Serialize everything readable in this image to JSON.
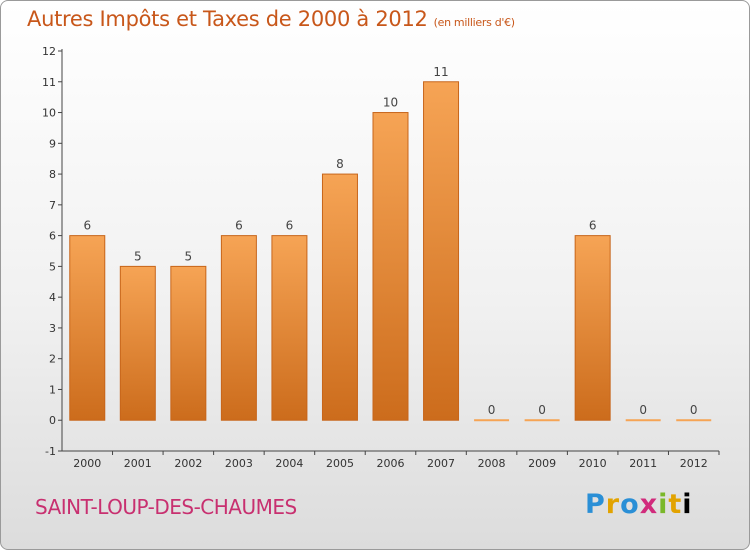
{
  "header": {
    "title": "Autres Impôts et Taxes de 2000 à 2012",
    "subtitle": "(en milliers d'€)"
  },
  "footer": {
    "commune": "SAINT-LOUP-DES-CHAUMES",
    "logo_letters": [
      "P",
      "r",
      "o",
      "x",
      "i",
      "t",
      "i"
    ]
  },
  "colors": {
    "title": "#c8571a",
    "commune": "#c83070",
    "bar_light": "#f6a455",
    "bar_dark": "#cc6c1c",
    "axis": "#444444"
  },
  "chart_data": {
    "type": "bar",
    "categories": [
      "2000",
      "2001",
      "2002",
      "2003",
      "2004",
      "2005",
      "2006",
      "2007",
      "2008",
      "2009",
      "2010",
      "2011",
      "2012"
    ],
    "values": [
      6,
      5,
      5,
      6,
      6,
      8,
      10,
      11,
      0,
      0,
      6,
      0,
      0
    ],
    "data_labels": [
      "6",
      "5",
      "5",
      "6",
      "6",
      "8",
      "10",
      "11",
      "0",
      "0",
      "6",
      "0",
      "0"
    ],
    "y_ticks": [
      "-1",
      "0",
      "1",
      "2",
      "3",
      "4",
      "5",
      "6",
      "7",
      "8",
      "9",
      "10",
      "11",
      "12"
    ],
    "ylim": [
      -1,
      12
    ],
    "grid": false,
    "legend": "none"
  }
}
